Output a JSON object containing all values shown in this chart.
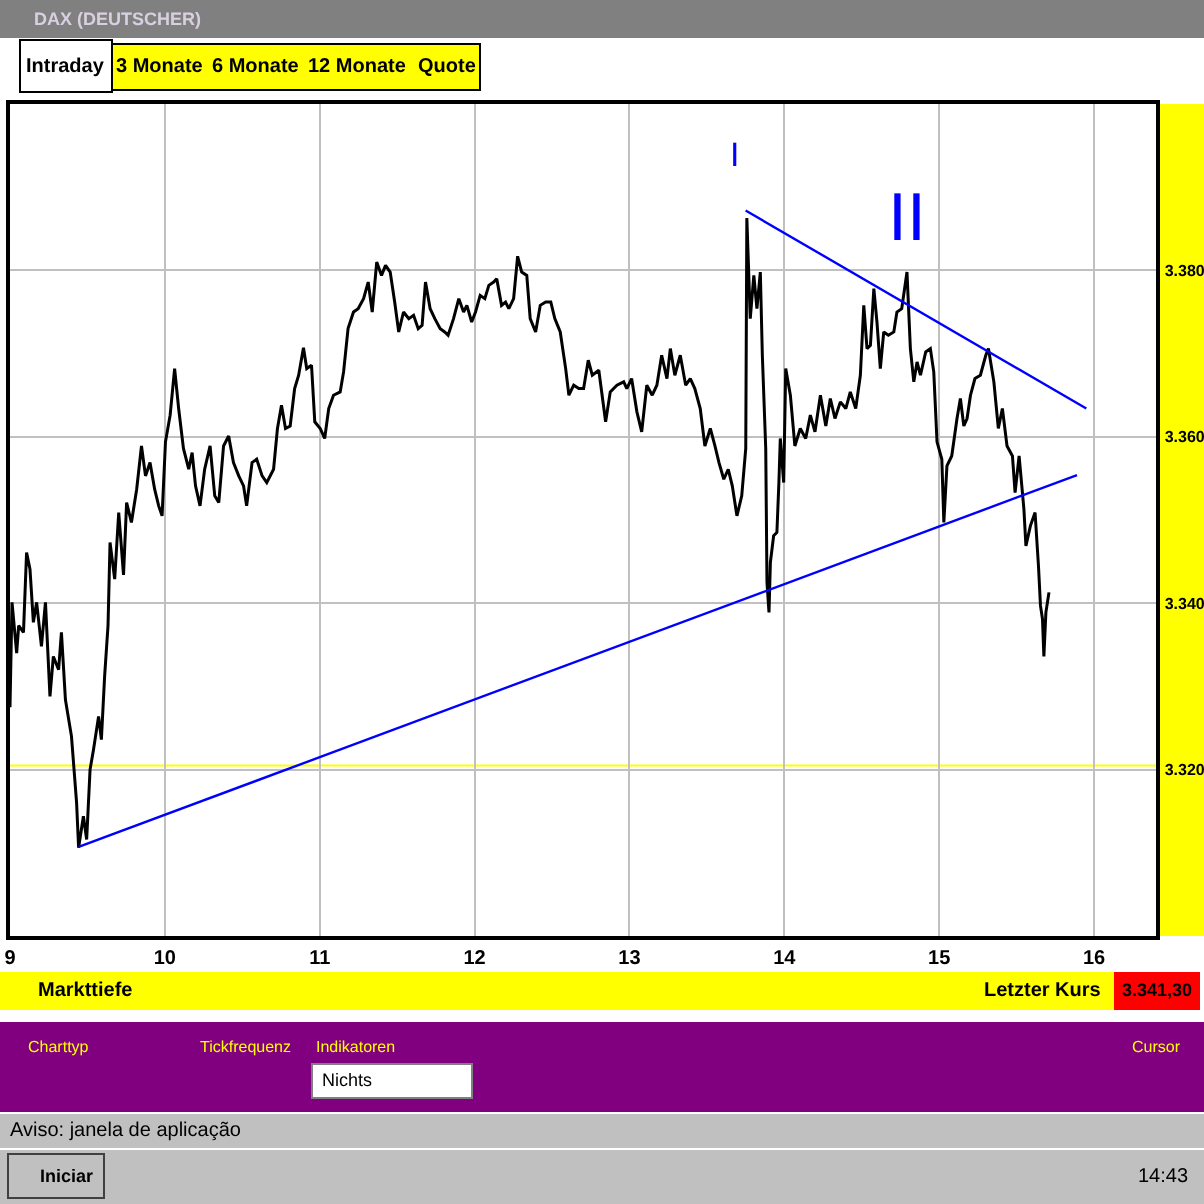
{
  "chart_data": {
    "type": "line",
    "title": "DAX (DEUTSCHER)",
    "xlim": [
      9,
      16.4
    ],
    "xticks": [
      9,
      10,
      11,
      12,
      13,
      14,
      15,
      16
    ],
    "ylim": [
      3300,
      3400
    ],
    "yticks": [
      {
        "value": 3320,
        "label": "3.320"
      },
      {
        "value": 3340,
        "label": "3.340"
      },
      {
        "value": 3360,
        "label": "3.360"
      },
      {
        "value": 3380,
        "label": "3.380"
      }
    ],
    "grid": true,
    "series": [
      {
        "color": "#000000",
        "x": [
          9.0,
          9.013,
          9.043,
          9.056,
          9.087,
          9.107,
          9.129,
          9.151,
          9.172,
          9.203,
          9.229,
          9.258,
          9.28,
          9.314,
          9.332,
          9.358,
          9.397,
          9.43,
          9.443,
          9.474,
          9.495,
          9.517,
          9.539,
          9.572,
          9.59,
          9.611,
          9.633,
          9.646,
          9.676,
          9.702,
          9.733,
          9.753,
          9.784,
          9.818,
          9.849,
          9.875,
          9.904,
          9.934,
          9.96,
          9.982,
          10.004,
          10.034,
          10.063,
          10.089,
          10.12,
          10.154,
          10.176,
          10.198,
          10.227,
          10.257,
          10.292,
          10.322,
          10.348,
          10.379,
          10.412,
          10.443,
          10.477,
          10.508,
          10.528,
          10.563,
          10.593,
          10.628,
          10.658,
          10.702,
          10.727,
          10.753,
          10.779,
          10.809,
          10.838,
          10.864,
          10.895,
          10.916,
          10.947,
          10.968,
          11.003,
          11.032,
          11.058,
          11.089,
          11.132,
          11.154,
          11.183,
          11.218,
          11.248,
          11.283,
          11.313,
          11.339,
          11.368,
          11.399,
          11.425,
          11.455,
          11.484,
          11.51,
          11.541,
          11.575,
          11.606,
          11.636,
          11.661,
          11.683,
          11.713,
          11.743,
          11.778,
          11.807,
          11.829,
          11.864,
          11.898,
          11.929,
          11.95,
          11.981,
          12.006,
          12.036,
          12.066,
          12.092,
          12.123,
          12.143,
          12.174,
          12.2,
          12.221,
          12.252,
          12.278,
          12.304,
          12.337,
          12.359,
          12.394,
          12.424,
          12.459,
          12.492,
          12.518,
          12.553,
          12.588,
          12.609,
          12.64,
          12.673,
          12.704,
          12.734,
          12.76,
          12.802,
          12.846,
          12.876,
          12.919,
          12.963,
          12.983,
          13.014,
          13.048,
          13.079,
          13.112,
          13.147,
          13.177,
          13.208,
          13.242,
          13.264,
          13.293,
          13.328,
          13.363,
          13.393,
          13.422,
          13.457,
          13.487,
          13.522,
          13.552,
          13.578,
          13.609,
          13.638,
          13.664,
          13.694,
          13.725,
          13.751,
          13.758,
          13.78,
          13.803,
          13.823,
          13.845,
          13.858,
          13.88,
          13.888,
          13.901,
          13.91,
          13.931,
          13.952,
          13.965,
          13.974,
          13.996,
          14.009,
          14.039,
          14.068,
          14.103,
          14.138,
          14.168,
          14.198,
          14.233,
          14.268,
          14.297,
          14.327,
          14.362,
          14.397,
          14.426,
          14.461,
          14.491,
          14.513,
          14.534,
          14.556,
          14.578,
          14.598,
          14.62,
          14.642,
          14.672,
          14.707,
          14.727,
          14.758,
          14.792,
          14.814,
          14.836,
          14.857,
          14.879,
          14.913,
          14.943,
          14.965,
          14.986,
          15.017,
          15.03,
          15.05,
          15.081,
          15.115,
          15.137,
          15.159,
          15.18,
          15.202,
          15.231,
          15.266,
          15.301,
          15.318,
          15.353,
          15.382,
          15.408,
          15.438,
          15.473,
          15.49,
          15.516,
          15.547,
          15.56,
          15.589,
          15.619,
          15.641,
          15.654,
          15.667,
          15.676,
          15.689,
          15.709
        ],
        "values": [
          3327.5,
          3340.1,
          3334.0,
          3337.3,
          3336.5,
          3346.1,
          3344.1,
          3337.7,
          3340.1,
          3334.8,
          3340.1,
          3328.8,
          3333.6,
          3332.0,
          3336.5,
          3328.4,
          3324.0,
          3316.0,
          3310.6,
          3314.4,
          3311.6,
          3320.0,
          3322.4,
          3326.4,
          3323.6,
          3331.2,
          3337.3,
          3347.3,
          3342.9,
          3350.9,
          3343.4,
          3352.1,
          3349.7,
          3353.7,
          3358.9,
          3355.3,
          3356.9,
          3353.7,
          3351.7,
          3350.5,
          3359.4,
          3362.6,
          3368.2,
          3363.4,
          3358.6,
          3356.1,
          3358.1,
          3354.1,
          3351.7,
          3356.1,
          3358.9,
          3352.9,
          3352.1,
          3358.9,
          3360.1,
          3356.9,
          3355.3,
          3354.1,
          3351.7,
          3356.9,
          3357.3,
          3355.3,
          3354.5,
          3356.1,
          3361.0,
          3363.8,
          3361.0,
          3361.3,
          3365.8,
          3367.4,
          3370.7,
          3368.2,
          3368.6,
          3361.8,
          3361.0,
          3359.8,
          3363.4,
          3365.0,
          3365.4,
          3367.8,
          3373.0,
          3375.0,
          3375.4,
          3376.6,
          3378.6,
          3375.0,
          3381.0,
          3379.4,
          3380.6,
          3379.8,
          3376.2,
          3372.6,
          3375.0,
          3374.2,
          3374.6,
          3373.0,
          3373.4,
          3378.6,
          3375.4,
          3374.2,
          3373.0,
          3372.6,
          3372.2,
          3374.2,
          3376.6,
          3375.0,
          3375.8,
          3373.8,
          3375.0,
          3377.0,
          3376.6,
          3378.2,
          3378.6,
          3379.0,
          3375.8,
          3376.2,
          3375.4,
          3376.6,
          3381.7,
          3379.8,
          3379.4,
          3374.2,
          3372.6,
          3375.8,
          3376.2,
          3376.2,
          3374.2,
          3372.6,
          3368.2,
          3365.0,
          3366.2,
          3365.8,
          3365.8,
          3369.2,
          3367.4,
          3368.0,
          3361.8,
          3365.4,
          3366.2,
          3366.6,
          3365.8,
          3367.0,
          3363.0,
          3360.6,
          3366.2,
          3365.0,
          3366.2,
          3369.8,
          3367.0,
          3370.6,
          3367.4,
          3369.8,
          3366.2,
          3367.0,
          3365.8,
          3363.4,
          3358.9,
          3361.0,
          3358.9,
          3356.9,
          3354.9,
          3356.1,
          3354.1,
          3350.5,
          3352.9,
          3358.6,
          3386.3,
          3374.2,
          3379.4,
          3375.4,
          3379.8,
          3369.8,
          3358.6,
          3342.5,
          3338.9,
          3344.9,
          3348.1,
          3348.5,
          3354.5,
          3359.8,
          3354.5,
          3368.2,
          3365.0,
          3358.9,
          3361.0,
          3359.8,
          3362.6,
          3360.6,
          3365.0,
          3361.3,
          3364.6,
          3362.2,
          3364.2,
          3363.4,
          3365.4,
          3363.4,
          3367.4,
          3375.8,
          3370.6,
          3371.0,
          3377.8,
          3373.8,
          3368.2,
          3372.6,
          3372.2,
          3372.6,
          3375.0,
          3375.4,
          3379.8,
          3370.6,
          3366.6,
          3369.0,
          3367.4,
          3370.2,
          3370.6,
          3367.8,
          3359.4,
          3357.3,
          3349.7,
          3356.5,
          3357.7,
          3362.2,
          3364.6,
          3361.3,
          3362.2,
          3365.0,
          3367.0,
          3367.4,
          3369.8,
          3370.6,
          3366.6,
          3361.0,
          3363.4,
          3358.9,
          3357.7,
          3353.3,
          3357.7,
          3351.3,
          3346.9,
          3349.3,
          3350.9,
          3344.5,
          3339.7,
          3338.1,
          3333.6,
          3338.9,
          3341.3
        ]
      },
      {
        "color": "#0000ff",
        "x": [
          9.443,
          15.89
        ],
        "values": [
          3310.7,
          3355.4
        ]
      },
      {
        "color": "#0000ff",
        "x": [
          13.75,
          15.95
        ],
        "values": [
          3387.2,
          3363.4
        ]
      }
    ],
    "ref_lines": [
      {
        "axis": "y",
        "value": 3320.5,
        "color": "#ffff00"
      }
    ],
    "annotations": [
      "Intraday",
      "3 Monate",
      "6 Monate",
      "12 Monate",
      "Quote",
      "I",
      "II",
      "Markttiefe",
      "Letzter Kurs",
      "3.341,30",
      "Charttyp",
      "Tickfrequenz",
      "Indikatoren",
      "Nichts",
      "Cursor",
      "Aviso: janela de aplicação",
      "Iniciar",
      "14:43"
    ]
  }
}
